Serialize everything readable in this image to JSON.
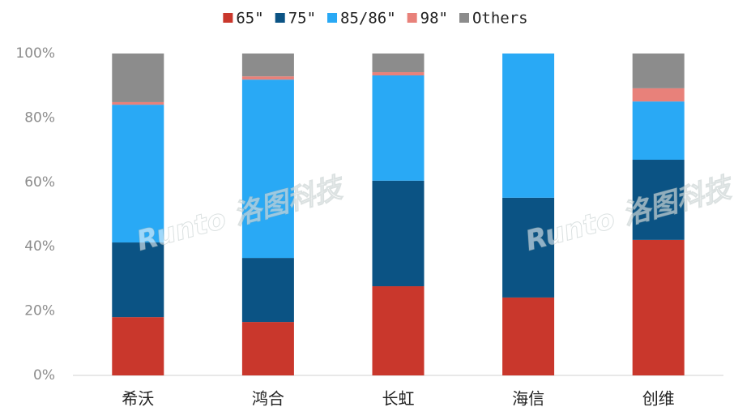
{
  "chart_data": {
    "type": "stacked_bar",
    "categories": [
      "希沃",
      "鸿合",
      "长虹",
      "海信",
      "创维"
    ],
    "series": [
      {
        "name": "65\"",
        "color": "#c9372c",
        "values": [
          18.1,
          16.6,
          27.7,
          24.2,
          42.1
        ]
      },
      {
        "name": "75\"",
        "color": "#0b5384",
        "values": [
          23.2,
          19.9,
          32.8,
          31.0,
          24.9
        ]
      },
      {
        "name": "85/86\"",
        "color": "#29a9f5",
        "values": [
          42.8,
          55.4,
          32.7,
          44.8,
          18.1
        ]
      },
      {
        "name": "98\"",
        "color": "#e8817a",
        "values": [
          0.8,
          1.0,
          1.0,
          0,
          4.1
        ]
      },
      {
        "name": "Others",
        "color": "#8c8c8c",
        "values": [
          15.1,
          7.1,
          5.8,
          0,
          10.8
        ]
      }
    ],
    "ylim": [
      0,
      100
    ],
    "yticks": [
      {
        "value": 0,
        "label": "0%"
      },
      {
        "value": 20,
        "label": "20%"
      },
      {
        "value": 40,
        "label": "40%"
      },
      {
        "value": 60,
        "label": "60%"
      },
      {
        "value": 80,
        "label": "80%"
      },
      {
        "value": 100,
        "label": "100%"
      }
    ],
    "grid": false,
    "legend": "top",
    "watermark": "Runto 洛图科技"
  }
}
